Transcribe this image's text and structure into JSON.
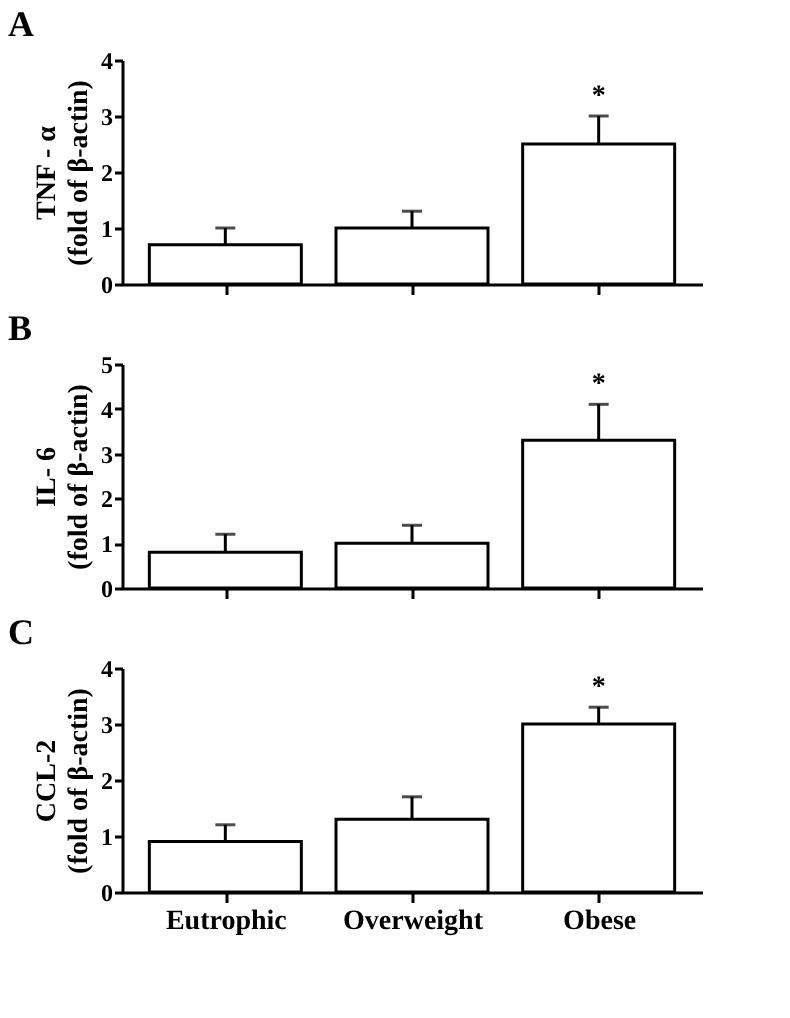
{
  "chart_data": [
    {
      "type": "bar",
      "title": "A",
      "ylabel": "TNF - α\n(fold of β-actin)",
      "categories": [
        "Eutrophic",
        "Overweight",
        "Obese"
      ],
      "values": [
        0.7,
        1.0,
        2.5
      ],
      "errors": [
        [
          0.7,
          1.0
        ],
        [
          1.0,
          1.3
        ],
        [
          2.5,
          3.0
        ]
      ],
      "color": "#ffffff",
      "ylim": [
        0,
        4
      ],
      "yticks": [
        0,
        1,
        2,
        3,
        4
      ],
      "grid": false,
      "tick_labels": "y",
      "annotations": [
        {
          "text": "*",
          "x": "Obese",
          "y": 3.0
        }
      ]
    },
    {
      "type": "bar",
      "title": "B",
      "ylabel": "IL- 6\n(fold of β-actin)",
      "categories": [
        "Eutrophic",
        "Overweight",
        "Obese"
      ],
      "values": [
        0.8,
        1.0,
        3.3
      ],
      "errors": [
        [
          0.8,
          1.2
        ],
        [
          1.0,
          1.4
        ],
        [
          3.3,
          4.1
        ]
      ],
      "color": "#ffffff",
      "ylim": [
        0,
        5
      ],
      "yticks": [
        0,
        1,
        2,
        3,
        4,
        5
      ],
      "grid": false,
      "tick_labels": "y",
      "annotations": [
        {
          "text": "*",
          "x": "Obese",
          "y": 4.1
        }
      ]
    },
    {
      "type": "bar",
      "title": "C",
      "ylabel": "CCL-2\n(fold of β-actin)",
      "categories": [
        "Eutrophic",
        "Overweight",
        "Obese"
      ],
      "values": [
        0.9,
        1.3,
        3.0
      ],
      "errors": [
        [
          0.9,
          1.2
        ],
        [
          1.3,
          1.7
        ],
        [
          3.0,
          3.3
        ]
      ],
      "color": "#ffffff",
      "ylim": [
        0,
        4
      ],
      "yticks": [
        0,
        1,
        2,
        3,
        4
      ],
      "grid": false,
      "annotations": [
        {
          "text": "*",
          "x": "Obese",
          "y": 3.3
        }
      ]
    }
  ]
}
